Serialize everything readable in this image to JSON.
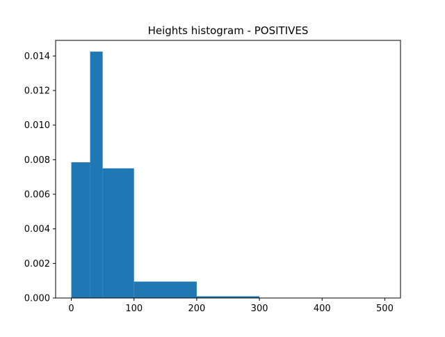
{
  "chart_data": {
    "type": "bar",
    "title": "Heights histogram - POSITIVES",
    "xlabel": "",
    "ylabel": "",
    "xlim": [
      -25,
      525
    ],
    "ylim": [
      0,
      0.0149
    ],
    "x_ticks": [
      0,
      100,
      200,
      300,
      400,
      500
    ],
    "x_tick_labels": [
      "0",
      "100",
      "200",
      "300",
      "400",
      "500"
    ],
    "y_ticks": [
      0.0,
      0.002,
      0.004,
      0.006,
      0.008,
      0.01,
      0.012,
      0.014
    ],
    "y_tick_labels": [
      "0.000",
      "0.002",
      "0.004",
      "0.006",
      "0.008",
      "0.010",
      "0.012",
      "0.014"
    ],
    "grid": false,
    "legend": "none",
    "bar_color": "#1f77b4",
    "bins": [
      {
        "start": 0,
        "end": 30,
        "value": 0.00785
      },
      {
        "start": 30,
        "end": 50,
        "value": 0.01425
      },
      {
        "start": 50,
        "end": 100,
        "value": 0.0075
      },
      {
        "start": 100,
        "end": 200,
        "value": 0.00095
      },
      {
        "start": 200,
        "end": 300,
        "value": 0.0001
      },
      {
        "start": 300,
        "end": 500,
        "value": 0.0
      }
    ]
  }
}
